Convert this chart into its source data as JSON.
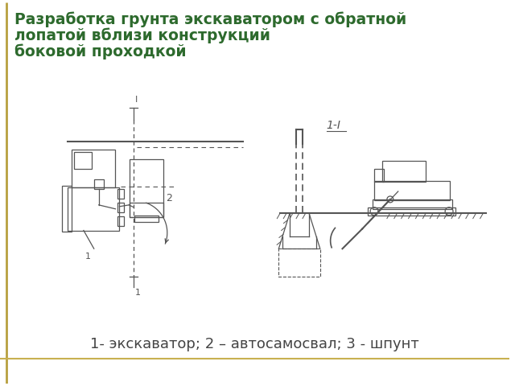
{
  "title_line1": "Разработка грунта экскаватором с обратной",
  "title_line2": "лопатой вблизи конструкций",
  "title_line3": "боковой проходкой",
  "title_color": "#2d6a2d",
  "caption": "1- экскаватор; 2 – автосамосвал; 3 - шпунт",
  "caption_color": "#444444",
  "bg_color": "#ffffff",
  "border_left_color": "#b8a040",
  "border_bottom_color": "#c8b050",
  "diagram_color": "#555555",
  "section_label": "1-I",
  "title_fontsize": 13.5,
  "caption_fontsize": 13
}
